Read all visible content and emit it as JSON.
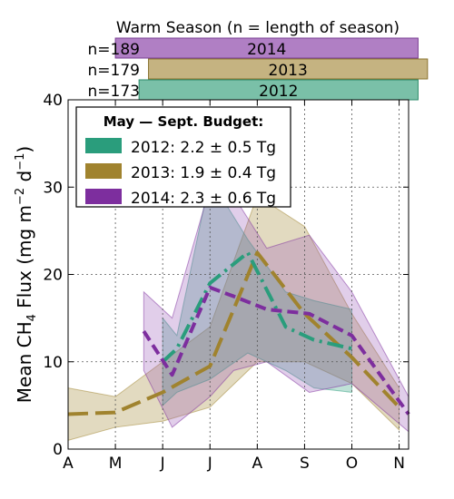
{
  "chart_data": {
    "type": "line",
    "season_panel": {
      "title": "Warm Season (n = length of season)",
      "bars": [
        {
          "n_label": "n=189",
          "year": "2014",
          "start_month": 1.0,
          "end_month": 7.4,
          "color": "#b07fc4",
          "edge": "#7a3f93"
        },
        {
          "n_label": "n=179",
          "year": "2013",
          "start_month": 1.7,
          "end_month": 7.6,
          "color": "#c5b381",
          "edge": "#8a7430"
        },
        {
          "n_label": "n=173",
          "year": "2012",
          "start_month": 1.5,
          "end_month": 7.4,
          "color": "#7ac0a8",
          "edge": "#2a8a6a"
        }
      ]
    },
    "ylabel_text": "Mean CH",
    "ylabel_sub": "4",
    "ylabel_rest": " Flux (mg m",
    "ylabel_sup1": "−2",
    "ylabel_mid": " d",
    "ylabel_sup2": "−1",
    "ylabel_end": ")",
    "x_months": [
      0,
      1,
      2,
      3,
      4,
      5,
      6,
      7
    ],
    "x_ticklabels": [
      "A",
      "M",
      "J",
      "J",
      "A",
      "S",
      "O",
      "N"
    ],
    "xlim": [
      0,
      7.2
    ],
    "ylim": [
      0,
      40
    ],
    "y_ticks": [
      0,
      10,
      20,
      30,
      40
    ],
    "y_ticklabels": [
      "0",
      "10",
      "20",
      "30",
      "40"
    ],
    "grid": true,
    "legend": {
      "title": "May — Sept. Budget:",
      "position": "top-left",
      "entries": [
        {
          "label": "2012: 2.2 ± 0.5 Tg",
          "color": "#2a9d7c"
        },
        {
          "label": "2013: 1.9 ± 0.4 Tg",
          "color": "#a0832e"
        },
        {
          "label": "2014: 2.3 ± 0.6 Tg",
          "color": "#7d2e9e"
        }
      ]
    },
    "series": [
      {
        "name": "2013",
        "color": "#a0832e",
        "fill": "#a0832e",
        "dash": "22,8",
        "x": [
          0,
          1,
          2,
          3,
          4,
          5,
          6,
          7
        ],
        "y": [
          4,
          4.2,
          6.5,
          9.5,
          22.5,
          15.5,
          10.5,
          4.8
        ],
        "lower": [
          1,
          2.5,
          3.2,
          4.8,
          10,
          10,
          7.5,
          2.2
        ],
        "upper": [
          7,
          6,
          10,
          14,
          29,
          25.5,
          15.5,
          7
        ]
      },
      {
        "name": "2012",
        "color": "#2a9d7c",
        "fill": "#2a9d7c",
        "dash": "18,6,3,6",
        "x": [
          2,
          2.3,
          3,
          3.8,
          4.6,
          5.2,
          6
        ],
        "y": [
          10,
          11.5,
          19,
          22.5,
          14,
          12.5,
          11.5
        ],
        "lower": [
          5,
          6.5,
          8,
          11,
          9,
          7,
          6.5
        ],
        "upper": [
          15,
          13,
          31,
          24,
          18,
          17,
          16
        ]
      },
      {
        "name": "2014",
        "color": "#7d2e9e",
        "fill": "#9b5cb8",
        "dash": "12,6",
        "x": [
          1.6,
          2.2,
          3,
          3.5,
          4.2,
          5.1,
          6,
          7.2
        ],
        "y": [
          13.5,
          8.5,
          18.5,
          17.5,
          16,
          15.5,
          13,
          4
        ],
        "lower": [
          9,
          2.5,
          6,
          9,
          10,
          6.5,
          7.5,
          2
        ],
        "upper": [
          18,
          15,
          30,
          29,
          23,
          24.5,
          18,
          6
        ]
      }
    ]
  }
}
